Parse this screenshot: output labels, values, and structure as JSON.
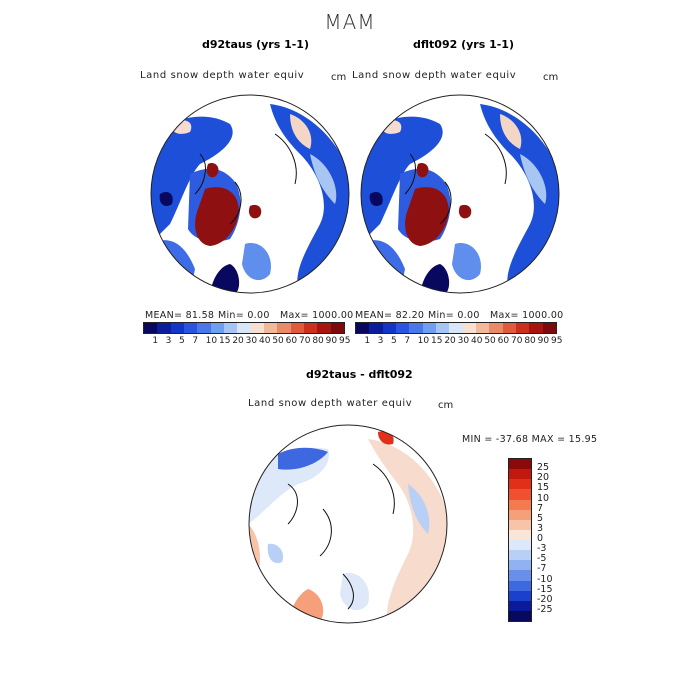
{
  "figure_title": "MAM",
  "panels": [
    {
      "title": "d92taus (yrs 1-1)",
      "field": "Land snow depth water equiv",
      "unit": "cm",
      "stats": {
        "mean": "MEAN= 81.58",
        "min": "Min= 0.00",
        "max": "Max= 1000.00"
      }
    },
    {
      "title": "dflt092 (yrs 1-1)",
      "field": "Land snow depth water equiv",
      "unit": "cm",
      "stats": {
        "mean": "MEAN= 82.20",
        "min": "Min= 0.00",
        "max": "Max= 1000.00"
      }
    },
    {
      "title": "d92taus - dflt092",
      "field": "Land snow depth water equiv",
      "unit": "cm",
      "stats": {
        "minmax": "MIN = -37.68 MAX = 15.95"
      }
    }
  ],
  "colorbar_abs": {
    "labels": [
      "1",
      "3",
      "5",
      "7",
      "10",
      "15",
      "20",
      "30",
      "40",
      "50",
      "60",
      "70",
      "80",
      "90",
      "95"
    ],
    "colors": [
      "#08085e",
      "#0a1d9a",
      "#1436c8",
      "#2a55e0",
      "#4a78ea",
      "#709ef0",
      "#a6c4f5",
      "#d8e6f8",
      "#f7e0d0",
      "#f2b89a",
      "#e98a68",
      "#e05a3c",
      "#cc2f1c",
      "#a81410",
      "#7d0a0a"
    ]
  },
  "colorbar_diff": {
    "labels": [
      "25",
      "20",
      "15",
      "10",
      "7",
      "5",
      "3",
      "0",
      "-3",
      "-5",
      "-7",
      "-10",
      "-15",
      "-20",
      "-25"
    ],
    "colors": [
      "#8a0a0a",
      "#c2180e",
      "#e0301a",
      "#f0502e",
      "#f47a50",
      "#f5a07a",
      "#f7c4a8",
      "#fae6d8",
      "#dde8f8",
      "#b8d0f5",
      "#90b2f0",
      "#6890ea",
      "#3e68e0",
      "#1a40cc",
      "#0a1a9a",
      "#08085e"
    ]
  },
  "icons": [
    "polar-projection-map-icon"
  ]
}
